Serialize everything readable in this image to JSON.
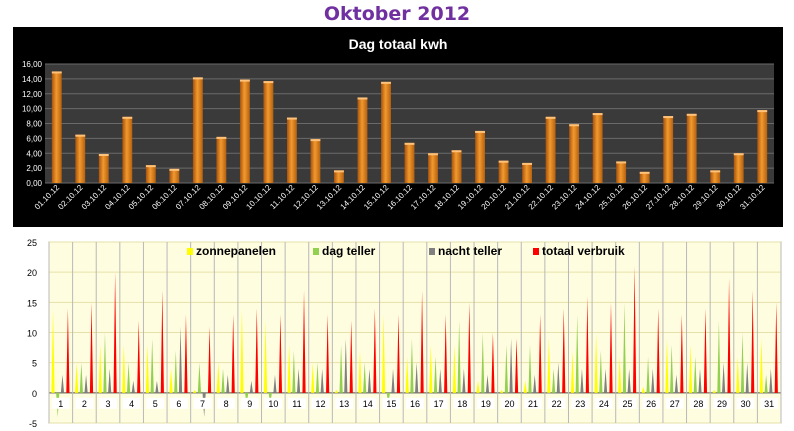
{
  "page": {
    "title": "Oktober 2012"
  },
  "colors": {
    "title": "#7030a0",
    "top_background": "#000000",
    "top_bar": "#f29a2e",
    "bottom_plot_background": "#fffde0",
    "zonnepanelen": "#ffff00",
    "dag_teller": "#92d050",
    "nacht_teller": "#808080",
    "totaal_verbruik": "#ff0000"
  },
  "chart_data": [
    {
      "type": "bar",
      "title": "Dag totaal kwh",
      "categories": [
        "01.10.12",
        "02.10.12",
        "03.10.12",
        "04.10.12",
        "05.10.12",
        "06.10.12",
        "07.10.12",
        "08.10.12",
        "09.10.12",
        "10.10.12",
        "11.10.12",
        "12.10.12",
        "13.10.12",
        "14.10.12",
        "15.10.12",
        "16.10.12",
        "17.10.12",
        "18.10.12",
        "19.10.12",
        "20.10.12",
        "21.10.12",
        "22.10.12",
        "23.10.12",
        "24.10.12",
        "25.10.12",
        "26.10.12",
        "27.10.12",
        "28.10.12",
        "29.10.12",
        "30.10.12",
        "31.10.12"
      ],
      "values": [
        15.0,
        6.5,
        3.9,
        8.9,
        2.4,
        1.9,
        14.2,
        6.2,
        13.9,
        13.7,
        8.8,
        5.9,
        1.7,
        11.5,
        13.6,
        5.4,
        4.0,
        4.4,
        7.0,
        3.0,
        2.7,
        8.9,
        7.9,
        9.4,
        2.9,
        1.5,
        9.0,
        9.3,
        1.7,
        4.0,
        9.8
      ],
      "ylim": [
        0,
        16
      ],
      "yticks": [
        "0,00",
        "2,00",
        "4,00",
        "6,00",
        "8,00",
        "10,00",
        "12,00",
        "14,00",
        "16,00"
      ],
      "grid": true,
      "xlabel": "",
      "ylabel": ""
    },
    {
      "type": "bar",
      "title": "",
      "legend_position": "top",
      "ylim": [
        -5,
        25
      ],
      "yticks": [
        "-5",
        "0",
        "5",
        "10",
        "15",
        "20",
        "25"
      ],
      "categories": [
        "1",
        "2",
        "3",
        "4",
        "5",
        "6",
        "7",
        "8",
        "9",
        "10",
        "11",
        "12",
        "13",
        "14",
        "15",
        "16",
        "17",
        "18",
        "19",
        "20",
        "21",
        "22",
        "23",
        "24",
        "25",
        "26",
        "27",
        "28",
        "29",
        "30",
        "31"
      ],
      "series": [
        {
          "name": "zonnepanelen",
          "values": [
            14,
            5,
            8,
            8,
            8,
            4,
            0.5,
            5,
            14,
            12,
            8,
            5,
            0.5,
            7,
            13,
            6,
            8,
            8,
            2,
            0.5,
            2,
            9,
            7,
            10,
            6,
            1,
            9,
            8,
            0.5,
            6,
            9
          ]
        },
        {
          "name": "dag teller",
          "values": [
            -4,
            5,
            10,
            5,
            9,
            7,
            5,
            4,
            -2,
            -2,
            7,
            5,
            8,
            5,
            -2,
            9,
            6,
            12,
            10,
            8,
            8,
            4,
            13,
            7,
            15,
            6,
            8,
            6,
            12,
            10,
            3
          ]
        },
        {
          "name": "nacht teller",
          "values": [
            3,
            3,
            4,
            2,
            2,
            11,
            -4,
            3,
            2,
            3,
            4,
            4,
            9,
            4,
            4,
            5,
            4,
            4,
            3,
            9,
            3,
            5,
            4,
            4,
            4,
            4,
            3,
            4,
            5,
            5,
            4
          ]
        },
        {
          "name": "totaal verbruik",
          "values": [
            14,
            15,
            20,
            12,
            17,
            13,
            11,
            13,
            14,
            13,
            17,
            13,
            12,
            14,
            13,
            17,
            13,
            15,
            10,
            9,
            13,
            14,
            16,
            15,
            21,
            14,
            13,
            14,
            19,
            17,
            15
          ]
        }
      ]
    }
  ]
}
